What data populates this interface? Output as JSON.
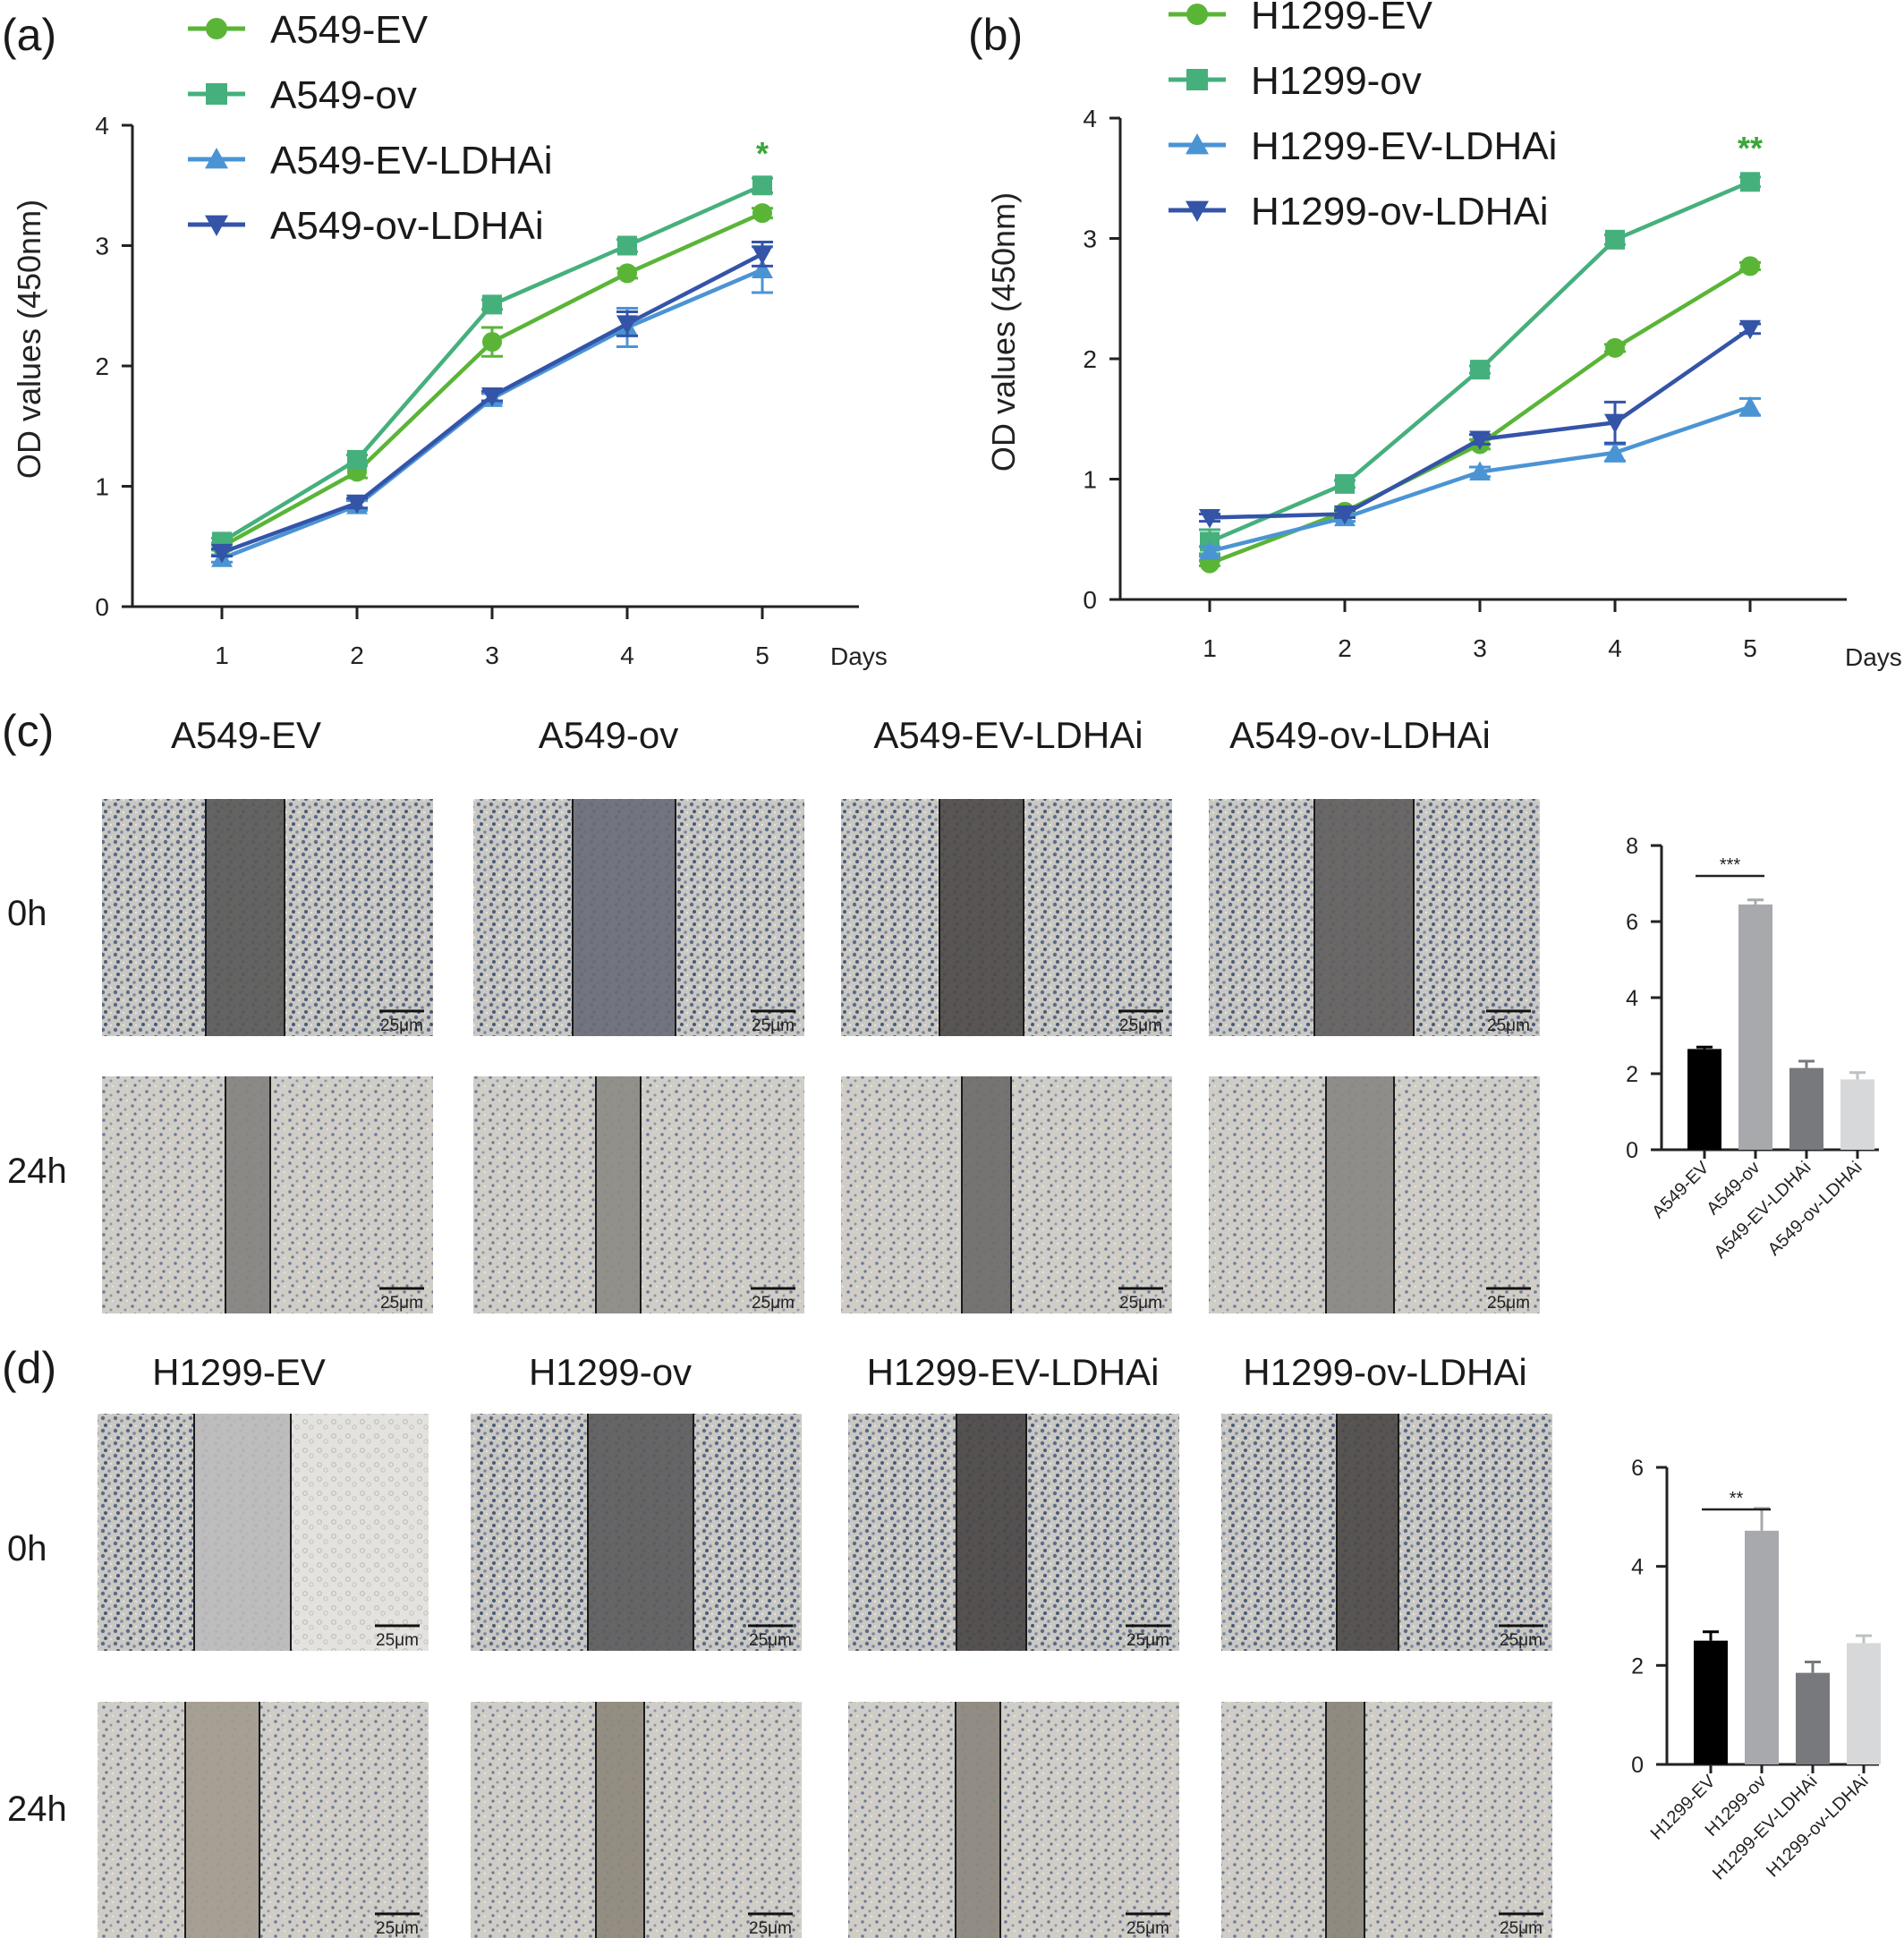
{
  "panels": {
    "a": {
      "label": "(a)"
    },
    "b": {
      "label": "(b)"
    },
    "c": {
      "label": "(c)",
      "columns": [
        "A549-EV",
        "A549-ov",
        "A549-EV-LDHAi",
        "A549-ov-LDHAi"
      ],
      "rows": [
        "0h",
        "24h"
      ],
      "scale_bar": "25μm"
    },
    "d": {
      "label": "(d)",
      "columns": [
        "H1299-EV",
        "H1299-ov",
        "H1299-EV-LDHAi",
        "H1299-ov-LDHAi"
      ],
      "rows": [
        "0h",
        "24h"
      ],
      "scale_bar": "25μm"
    }
  },
  "chart_data": [
    {
      "id": "a",
      "type": "line",
      "ylabel": "OD values (450nm)",
      "xlabel": "Days",
      "x": [
        1,
        2,
        3,
        4,
        5
      ],
      "xticks": [
        "1",
        "2",
        "3",
        "4",
        "5"
      ],
      "yticks": [
        "0",
        "1",
        "2",
        "3",
        "4"
      ],
      "ylim": [
        0,
        4
      ],
      "annotation": "*",
      "annotation_color": "#3aa63a",
      "series": [
        {
          "name": "A549-EV",
          "marker": "circle",
          "color": "#5ab537",
          "values": [
            0.5,
            1.12,
            2.2,
            2.77,
            3.27
          ],
          "err": [
            0.03,
            0.05,
            0.12,
            0.04,
            0.04
          ]
        },
        {
          "name": "A549-ov",
          "marker": "square",
          "color": "#46b07d",
          "values": [
            0.54,
            1.22,
            2.51,
            3.0,
            3.5
          ],
          "err": [
            0.03,
            0.04,
            0.04,
            0.05,
            0.06
          ]
        },
        {
          "name": "A549-EV-LDHAi",
          "marker": "triangle-up",
          "color": "#4b94d4",
          "values": [
            0.4,
            0.84,
            1.73,
            2.32,
            2.8
          ],
          "err": [
            0.03,
            0.04,
            0.04,
            0.16,
            0.19
          ]
        },
        {
          "name": "A549-ov-LDHAi",
          "marker": "triangle-down",
          "color": "#3454a8",
          "values": [
            0.45,
            0.86,
            1.75,
            2.35,
            2.93
          ],
          "err": [
            0.03,
            0.04,
            0.04,
            0.1,
            0.1
          ]
        }
      ]
    },
    {
      "id": "b",
      "type": "line",
      "ylabel": "OD values (450nm)",
      "xlabel": "Days",
      "x": [
        1,
        2,
        3,
        4,
        5
      ],
      "xticks": [
        "1",
        "2",
        "3",
        "4",
        "5"
      ],
      "yticks": [
        "0",
        "1",
        "2",
        "3",
        "4"
      ],
      "ylim": [
        0,
        4
      ],
      "annotation": "**",
      "annotation_color": "#3aa63a",
      "series": [
        {
          "name": "H1299-EV",
          "marker": "circle",
          "color": "#5ab537",
          "values": [
            0.3,
            0.73,
            1.29,
            2.09,
            2.77
          ],
          "err": [
            0.02,
            0.03,
            0.04,
            0.03,
            0.03
          ]
        },
        {
          "name": "H1299-ov",
          "marker": "square",
          "color": "#46b07d",
          "values": [
            0.48,
            0.96,
            1.91,
            2.99,
            3.47
          ],
          "err": [
            0.1,
            0.03,
            0.03,
            0.04,
            0.04
          ]
        },
        {
          "name": "H1299-EV-LDHAi",
          "marker": "triangle-up",
          "color": "#4b94d4",
          "values": [
            0.4,
            0.68,
            1.06,
            1.22,
            1.6
          ],
          "err": [
            0.04,
            0.03,
            0.04,
            0.07,
            0.07
          ]
        },
        {
          "name": "H1299-ov-LDHAi",
          "marker": "triangle-down",
          "color": "#3454a8",
          "values": [
            0.68,
            0.71,
            1.33,
            1.47,
            2.25
          ],
          "err": [
            0.03,
            0.03,
            0.04,
            0.17,
            0.04
          ]
        }
      ]
    },
    {
      "id": "c-bar",
      "type": "bar",
      "categories": [
        "A549-EV",
        "A549-ov",
        "A549-EV-LDHAi",
        "A549-ov-LDHAi"
      ],
      "values": [
        2.65,
        6.45,
        2.15,
        1.85
      ],
      "err": [
        0.05,
        0.12,
        0.18,
        0.18
      ],
      "colors": [
        "#000000",
        "#a8a9ad",
        "#77797c",
        "#d7d8da"
      ],
      "yticks": [
        "0",
        "2",
        "4",
        "6",
        "8"
      ],
      "ylim": [
        0,
        8
      ],
      "significance": "***"
    },
    {
      "id": "d-bar",
      "type": "bar",
      "categories": [
        "H1299-EV",
        "H1299-ov",
        "H1299-EV-LDHAi",
        "H1299-ov-LDHAi"
      ],
      "values": [
        2.5,
        4.72,
        1.85,
        2.45
      ],
      "err": [
        0.18,
        0.45,
        0.22,
        0.15
      ],
      "colors": [
        "#000000",
        "#a8a9ad",
        "#77797c",
        "#d7d8da"
      ],
      "yticks": [
        "0",
        "2",
        "4",
        "6"
      ],
      "ylim": [
        0,
        6
      ],
      "significance": "**"
    }
  ]
}
